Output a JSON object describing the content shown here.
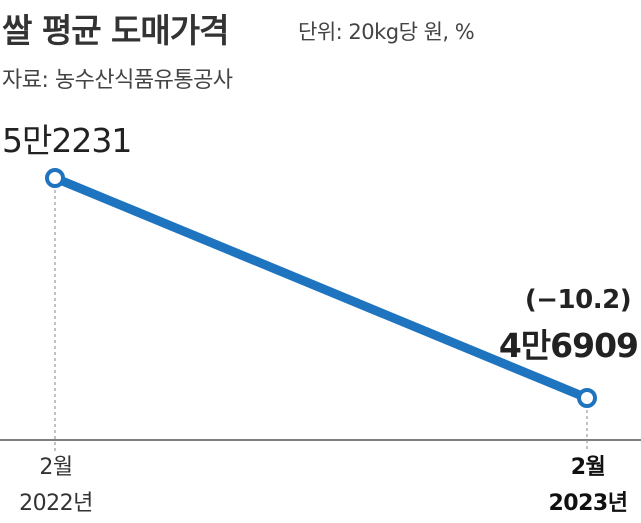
{
  "header": {
    "title": "쌀 평균 도매가격",
    "unit": "단위: 20kg당 원, %",
    "source": "자료: 농수산식품유통공사"
  },
  "chart_data": {
    "type": "line",
    "x": [
      "2월 2022년",
      "2월 2023년"
    ],
    "x_month": [
      "2월",
      "2월"
    ],
    "x_year": [
      "2022년",
      "2023년"
    ],
    "series": [
      {
        "values": [
          52231,
          46909
        ]
      }
    ],
    "value_labels": [
      "5만2231",
      "4만6909"
    ],
    "change_label": "(−10.2)",
    "line_color": "#1f74bf",
    "marker_fill": "#ffffff",
    "axis_color": "#555555",
    "grid": false
  }
}
